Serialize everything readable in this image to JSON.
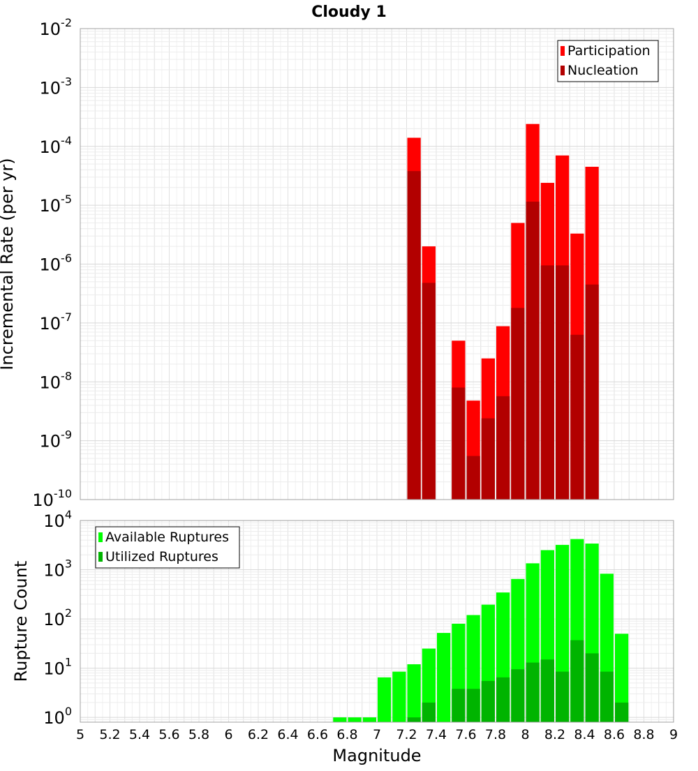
{
  "title": "Cloudy 1",
  "chart_data": [
    {
      "type": "bar",
      "panel": "rate",
      "ylabel": "Incremental Rate (per yr)",
      "yscale": "log",
      "ylim": [
        1e-10,
        0.01
      ],
      "xlim": [
        5,
        9
      ],
      "y_tick_exponents": [
        "-10",
        "-9",
        "-8",
        "-7",
        "-6",
        "-5",
        "-4",
        "-3",
        "-2"
      ],
      "grid": true,
      "legend_position": "top-right",
      "x": [
        7.25,
        7.35,
        7.55,
        7.65,
        7.75,
        7.85,
        7.95,
        8.05,
        8.15,
        8.25,
        8.35,
        8.45
      ],
      "series": [
        {
          "name": "Participation",
          "color": "#ff0000",
          "values": [
            0.00014,
            2e-06,
            5e-08,
            4.8e-09,
            2.5e-08,
            8.8e-08,
            5e-06,
            0.00024,
            2.4e-05,
            7e-05,
            3.3e-06,
            4.5e-05
          ]
        },
        {
          "name": "Nucleation",
          "color": "#b20000",
          "values": [
            3.8e-05,
            4.8e-07,
            8e-09,
            5.5e-10,
            2.4e-09,
            5.7e-09,
            1.8e-07,
            1.15e-05,
            9.5e-07,
            9.5e-07,
            6.3e-08,
            4.5e-07
          ]
        }
      ]
    },
    {
      "type": "bar",
      "panel": "count",
      "xlabel": "Magnitude",
      "ylabel": "Rupture Count",
      "yscale": "log",
      "ylim": [
        0.8,
        10000
      ],
      "xlim": [
        5,
        9
      ],
      "x_ticks": [
        "5",
        "5.2",
        "5.4",
        "5.6",
        "5.8",
        "6",
        "6.2",
        "6.4",
        "6.6",
        "6.8",
        "7",
        "7.2",
        "7.4",
        "7.6",
        "7.8",
        "8",
        "8.2",
        "8.4",
        "8.6",
        "8.8",
        "9"
      ],
      "y_tick_exponents": [
        "0",
        "1",
        "2",
        "3",
        "4"
      ],
      "grid": true,
      "legend_position": "top-left",
      "x": [
        6.75,
        6.85,
        6.95,
        7.05,
        7.15,
        7.25,
        7.35,
        7.45,
        7.55,
        7.65,
        7.75,
        7.85,
        7.95,
        8.05,
        8.15,
        8.25,
        8.35,
        8.45,
        8.55,
        8.65
      ],
      "series": [
        {
          "name": "Available Ruptures",
          "color": "#00ff00",
          "values": [
            1,
            1,
            1,
            6.5,
            8.5,
            12,
            25,
            52,
            80,
            120,
            195,
            345,
            650,
            1350,
            2500,
            3200,
            4200,
            3400,
            830,
            50
          ]
        },
        {
          "name": "Utilized Ruptures",
          "color": "#00b400",
          "values": [
            0,
            0,
            0,
            0,
            0,
            1,
            2,
            0,
            3.8,
            3.8,
            5.5,
            6.5,
            9.5,
            13,
            15,
            8.5,
            37,
            20,
            8.5,
            2
          ]
        }
      ]
    }
  ]
}
